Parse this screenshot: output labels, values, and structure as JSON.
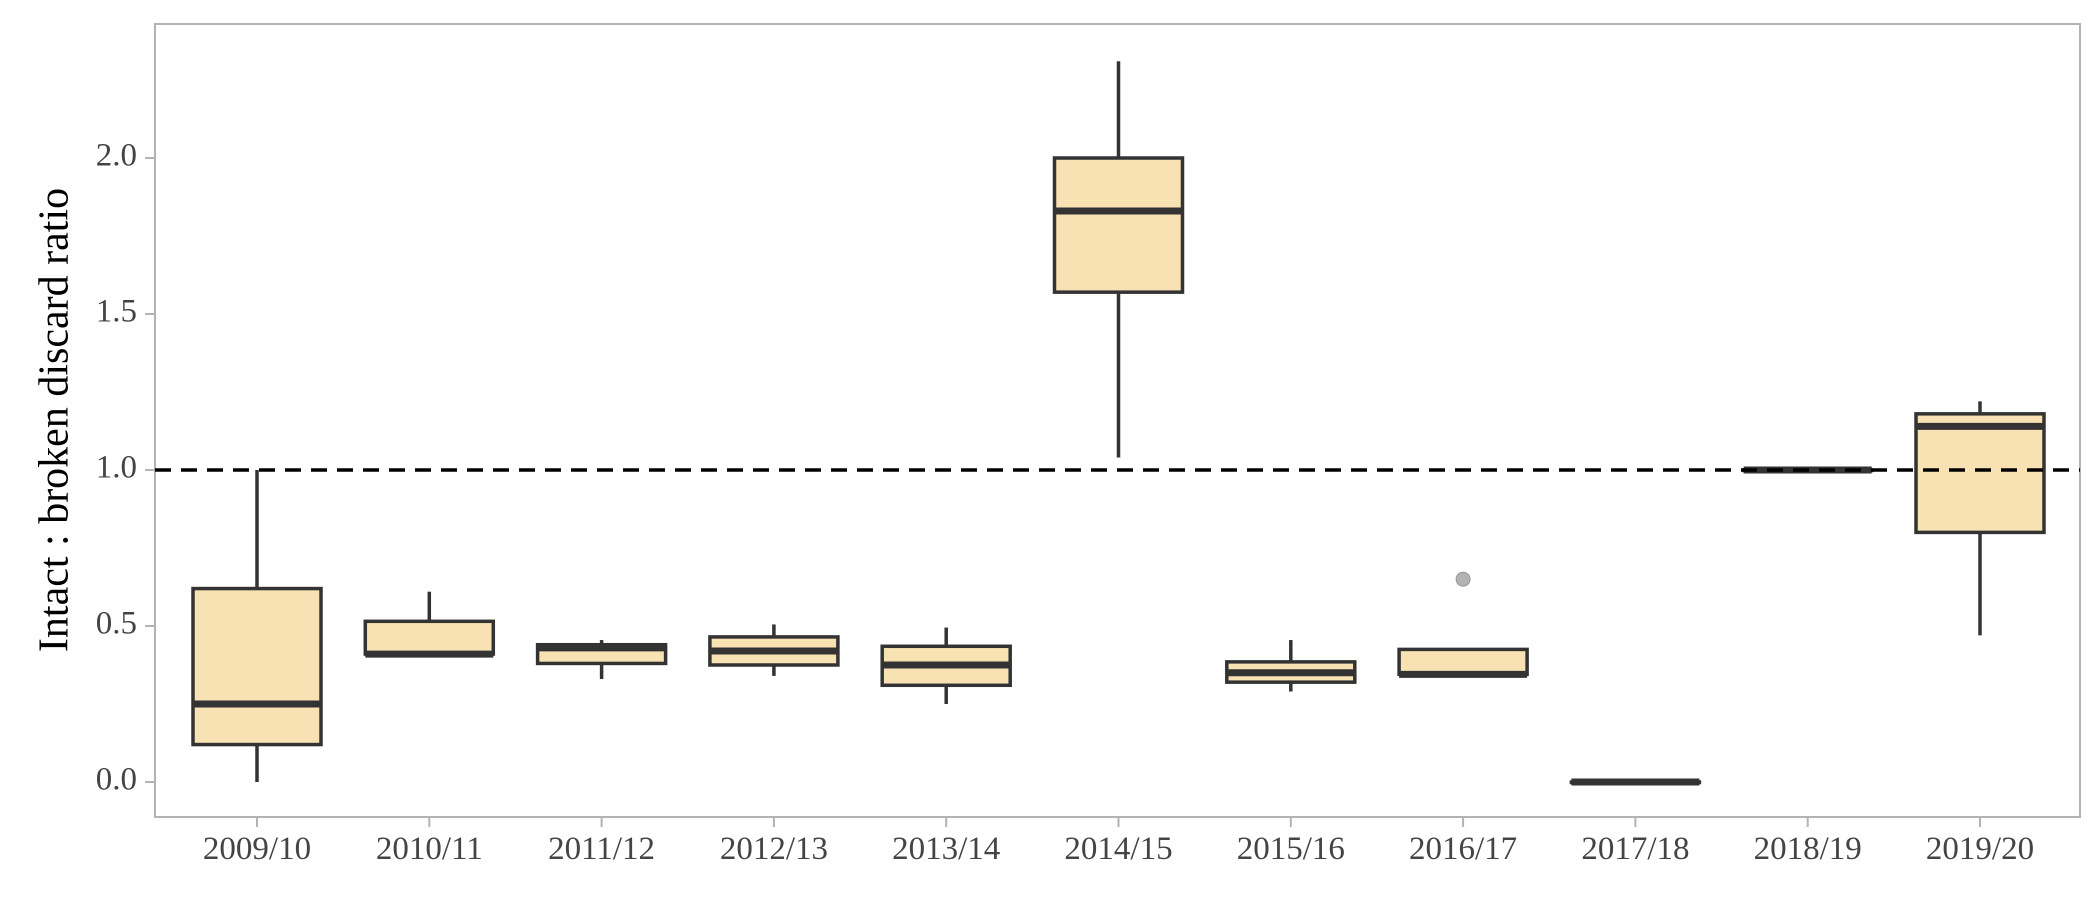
{
  "chart_data": {
    "type": "box",
    "title": "",
    "xlabel": "",
    "ylabel": "Intact : broken discard ratio",
    "ylim": [
      -0.11,
      2.43
    ],
    "yticks": [
      0.0,
      0.5,
      1.0,
      1.5,
      2.0
    ],
    "ytick_labels": [
      "0.0",
      "0.5",
      "1.0",
      "1.5",
      "2.0"
    ],
    "grid": false,
    "reference_line": {
      "y": 1.0,
      "style": "dashed",
      "color": "#000000"
    },
    "box_fill": "#f8e1b3",
    "box_stroke": "#333333",
    "outlier_color": "#b3b3b3",
    "categories": [
      "2009/10",
      "2010/11",
      "2011/12",
      "2012/13",
      "2013/14",
      "2014/15",
      "2015/16",
      "2016/17",
      "2017/18",
      "2018/19",
      "2019/20"
    ],
    "boxes": [
      {
        "category": "2009/10",
        "whisker_low": 0.0,
        "q1": 0.12,
        "median": 0.25,
        "q3": 0.62,
        "whisker_high": 1.0,
        "outliers": []
      },
      {
        "category": "2010/11",
        "whisker_low": 0.41,
        "q1": 0.41,
        "median": 0.41,
        "q3": 0.515,
        "whisker_high": 0.61,
        "outliers": []
      },
      {
        "category": "2011/12",
        "whisker_low": 0.33,
        "q1": 0.38,
        "median": 0.43,
        "q3": 0.44,
        "whisker_high": 0.455,
        "outliers": []
      },
      {
        "category": "2012/13",
        "whisker_low": 0.34,
        "q1": 0.375,
        "median": 0.42,
        "q3": 0.465,
        "whisker_high": 0.505,
        "outliers": []
      },
      {
        "category": "2013/14",
        "whisker_low": 0.25,
        "q1": 0.31,
        "median": 0.375,
        "q3": 0.435,
        "whisker_high": 0.495,
        "outliers": []
      },
      {
        "category": "2014/15",
        "whisker_low": 1.04,
        "q1": 1.57,
        "median": 1.83,
        "q3": 2.0,
        "whisker_high": 2.31,
        "outliers": []
      },
      {
        "category": "2015/16",
        "whisker_low": 0.29,
        "q1": 0.32,
        "median": 0.35,
        "q3": 0.385,
        "whisker_high": 0.455,
        "outliers": []
      },
      {
        "category": "2016/17",
        "whisker_low": 0.34,
        "q1": 0.345,
        "median": 0.345,
        "q3": 0.425,
        "whisker_high": 0.425,
        "outliers": [
          0.65
        ]
      },
      {
        "category": "2017/18",
        "whisker_low": 0.0,
        "q1": 0.0,
        "median": 0.0,
        "q3": 0.0,
        "whisker_high": 0.0,
        "outliers": []
      },
      {
        "category": "2018/19",
        "whisker_low": 1.0,
        "q1": 1.0,
        "median": 1.0,
        "q3": 1.0,
        "whisker_high": 1.0,
        "outliers": []
      },
      {
        "category": "2019/20",
        "whisker_low": 0.47,
        "q1": 0.8,
        "median": 1.14,
        "q3": 1.18,
        "whisker_high": 1.22,
        "outliers": []
      }
    ]
  }
}
